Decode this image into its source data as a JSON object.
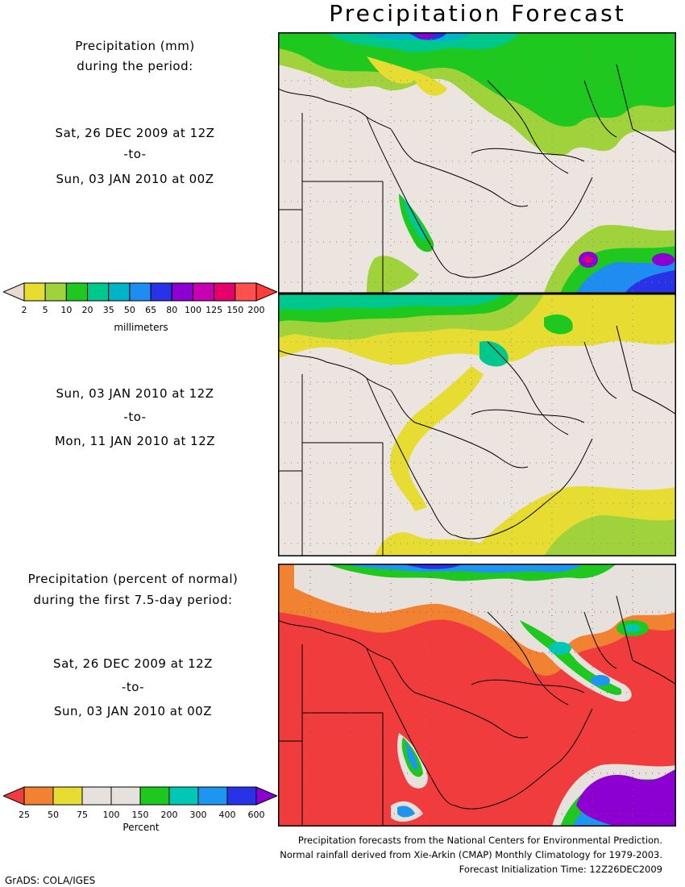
{
  "header": {
    "title": "Precipitation Forecast"
  },
  "section1": {
    "label_line1": "Precipitation (mm)",
    "label_line2": "during the period:",
    "period": {
      "start": "Sat, 26 DEC 2009 at 12Z",
      "to": "-to-",
      "end": "Sun, 03 JAN 2010 at 00Z"
    }
  },
  "section2": {
    "period": {
      "start": "Sun, 03 JAN 2010 at 12Z",
      "to": "-to-",
      "end": "Mon, 11 JAN 2010 at 12Z"
    }
  },
  "section3": {
    "label_line1": "Precipitation (percent of normal)",
    "label_line2": "during the first 7.5-day period:",
    "period": {
      "start": "Sat, 26 DEC 2009 at 12Z",
      "to": "-to-",
      "end": "Sun, 03 JAN 2010 at 00Z"
    }
  },
  "legend_mm": {
    "unit": "millimeters",
    "ticks": [
      "2",
      "5",
      "10",
      "20",
      "35",
      "50",
      "65",
      "80",
      "100",
      "125",
      "150",
      "200"
    ],
    "colors": [
      "#e6dcd2",
      "#e6dc32",
      "#a0d23c",
      "#1ec81e",
      "#00c88c",
      "#00b4c8",
      "#1e8cf0",
      "#2832e6",
      "#8c00d2",
      "#c800b4",
      "#e6006e",
      "#ff5050",
      "#ff3c3c"
    ]
  },
  "legend_pct": {
    "unit": "Percent",
    "ticks": [
      "25",
      "50",
      "75",
      "100",
      "150",
      "200",
      "300",
      "400",
      "600"
    ],
    "colors": [
      "#f03c3c",
      "#f08232",
      "#e6dc32",
      "#e6e1dc",
      "#e6e1dc",
      "#1ec81e",
      "#00c8b4",
      "#1e96f0",
      "#2832e6",
      "#8c00d2"
    ]
  },
  "credits": {
    "line1": "Precipitation forecasts from the National Centers for Environmental Prediction.",
    "line2": "Normal rainfall derived from Xie-Arkin (CMAP) Monthly Climatology for 1979-2003.",
    "line3": "Forecast Initialization Time: 12Z26DEC2009"
  },
  "footer": {
    "software": "GrADS: COLA/IGES"
  }
}
